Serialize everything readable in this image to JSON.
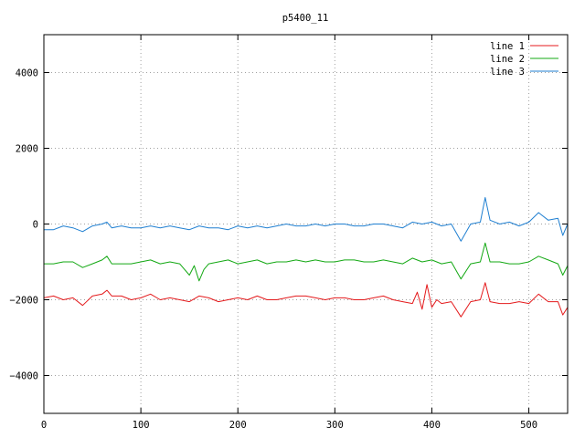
{
  "chart_data": {
    "type": "line",
    "title": "p5400_11",
    "xlabel": "",
    "ylabel": "",
    "xlim": [
      0,
      540
    ],
    "ylim": [
      -5000,
      5000
    ],
    "x_ticks": [
      0,
      100,
      200,
      300,
      400,
      500
    ],
    "y_ticks": [
      -4000,
      -2000,
      0,
      2000,
      4000
    ],
    "grid": true,
    "legend_position": "top-right",
    "series": [
      {
        "name": "line 1",
        "color": "#e41a1c",
        "x": [
          0,
          10,
          20,
          30,
          40,
          50,
          60,
          65,
          70,
          80,
          90,
          100,
          110,
          120,
          130,
          140,
          150,
          160,
          170,
          180,
          190,
          200,
          210,
          220,
          230,
          240,
          250,
          260,
          270,
          280,
          290,
          300,
          310,
          320,
          330,
          340,
          350,
          360,
          370,
          380,
          385,
          390,
          395,
          400,
          405,
          410,
          420,
          430,
          440,
          450,
          455,
          460,
          470,
          480,
          490,
          500,
          510,
          520,
          530,
          535,
          540
        ],
        "y": [
          -1950,
          -1900,
          -2000,
          -1950,
          -2150,
          -1900,
          -1850,
          -1750,
          -1900,
          -1900,
          -2000,
          -1950,
          -1850,
          -2000,
          -1950,
          -2000,
          -2050,
          -1900,
          -1950,
          -2050,
          -2000,
          -1950,
          -2000,
          -1900,
          -2000,
          -2000,
          -1950,
          -1900,
          -1900,
          -1950,
          -2000,
          -1950,
          -1950,
          -2000,
          -2000,
          -1950,
          -1900,
          -2000,
          -2050,
          -2100,
          -1800,
          -2250,
          -1600,
          -2200,
          -2000,
          -2100,
          -2050,
          -2450,
          -2050,
          -2000,
          -1550,
          -2050,
          -2100,
          -2100,
          -2050,
          -2100,
          -1850,
          -2050,
          -2050,
          -2400,
          -2200
        ]
      },
      {
        "name": "line 2",
        "color": "#13a813",
        "x": [
          0,
          10,
          20,
          30,
          40,
          50,
          60,
          65,
          70,
          80,
          90,
          100,
          110,
          120,
          130,
          140,
          150,
          155,
          160,
          165,
          170,
          180,
          190,
          200,
          210,
          220,
          230,
          240,
          250,
          260,
          270,
          280,
          290,
          300,
          310,
          320,
          330,
          340,
          350,
          360,
          370,
          380,
          390,
          400,
          410,
          420,
          430,
          440,
          450,
          455,
          460,
          470,
          480,
          490,
          500,
          510,
          520,
          530,
          535,
          540
        ],
        "y": [
          -1050,
          -1050,
          -1000,
          -1000,
          -1150,
          -1050,
          -950,
          -850,
          -1050,
          -1050,
          -1050,
          -1000,
          -950,
          -1050,
          -1000,
          -1050,
          -1350,
          -1100,
          -1500,
          -1200,
          -1050,
          -1000,
          -950,
          -1050,
          -1000,
          -950,
          -1050,
          -1000,
          -1000,
          -950,
          -1000,
          -950,
          -1000,
          -1000,
          -950,
          -950,
          -1000,
          -1000,
          -950,
          -1000,
          -1050,
          -900,
          -1000,
          -950,
          -1050,
          -1000,
          -1450,
          -1050,
          -1000,
          -500,
          -1000,
          -1000,
          -1050,
          -1050,
          -1000,
          -850,
          -950,
          -1050,
          -1350,
          -1100
        ]
      },
      {
        "name": "line 3",
        "color": "#1f7fd1",
        "x": [
          0,
          10,
          20,
          30,
          40,
          50,
          60,
          65,
          70,
          80,
          90,
          100,
          110,
          120,
          130,
          140,
          150,
          160,
          170,
          180,
          190,
          200,
          210,
          220,
          230,
          240,
          250,
          260,
          270,
          280,
          290,
          300,
          310,
          320,
          330,
          340,
          350,
          360,
          370,
          380,
          390,
          400,
          410,
          420,
          430,
          440,
          450,
          455,
          460,
          470,
          480,
          490,
          500,
          510,
          520,
          530,
          535,
          540
        ],
        "y": [
          -150,
          -150,
          -50,
          -100,
          -200,
          -50,
          0,
          50,
          -100,
          -50,
          -100,
          -100,
          -50,
          -100,
          -50,
          -100,
          -150,
          -50,
          -100,
          -100,
          -150,
          -50,
          -100,
          -50,
          -100,
          -50,
          0,
          -50,
          -50,
          0,
          -50,
          0,
          0,
          -50,
          -50,
          0,
          0,
          -50,
          -100,
          50,
          0,
          50,
          -50,
          0,
          -450,
          0,
          50,
          700,
          100,
          0,
          50,
          -50,
          50,
          300,
          100,
          150,
          -300,
          0
        ]
      }
    ]
  }
}
